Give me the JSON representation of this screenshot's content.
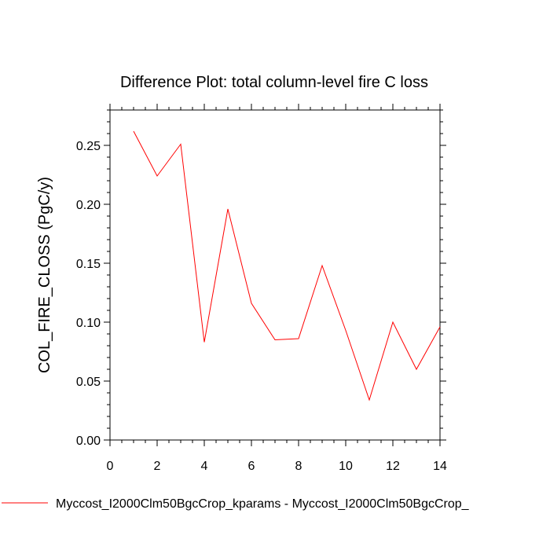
{
  "chart_data": {
    "type": "line",
    "title": "Difference Plot: total column-level fire C loss",
    "xlabel": "",
    "ylabel": "COL_FIRE_CLOSS  (PgC/y)",
    "xlim": [
      0,
      14
    ],
    "ylim": [
      0,
      0.28
    ],
    "x_ticks": [
      "0",
      "2",
      "4",
      "6",
      "8",
      "10",
      "12",
      "14"
    ],
    "y_ticks": [
      "0.00",
      "0.05",
      "0.10",
      "0.15",
      "0.20",
      "0.25"
    ],
    "grid": false,
    "legend_position": "bottom",
    "series": [
      {
        "name": "Myccost_I2000Clm50BgcCrop_kparams - Myccost_I2000Clm50BgcCrop_",
        "color": "#ff0000",
        "x": [
          1,
          2,
          3,
          4,
          5,
          6,
          7,
          8,
          9,
          10,
          11,
          12,
          13,
          14
        ],
        "values": [
          0.262,
          0.224,
          0.251,
          0.083,
          0.196,
          0.116,
          0.085,
          0.086,
          0.148,
          0.093,
          0.034,
          0.1,
          0.06,
          0.096
        ]
      }
    ]
  }
}
